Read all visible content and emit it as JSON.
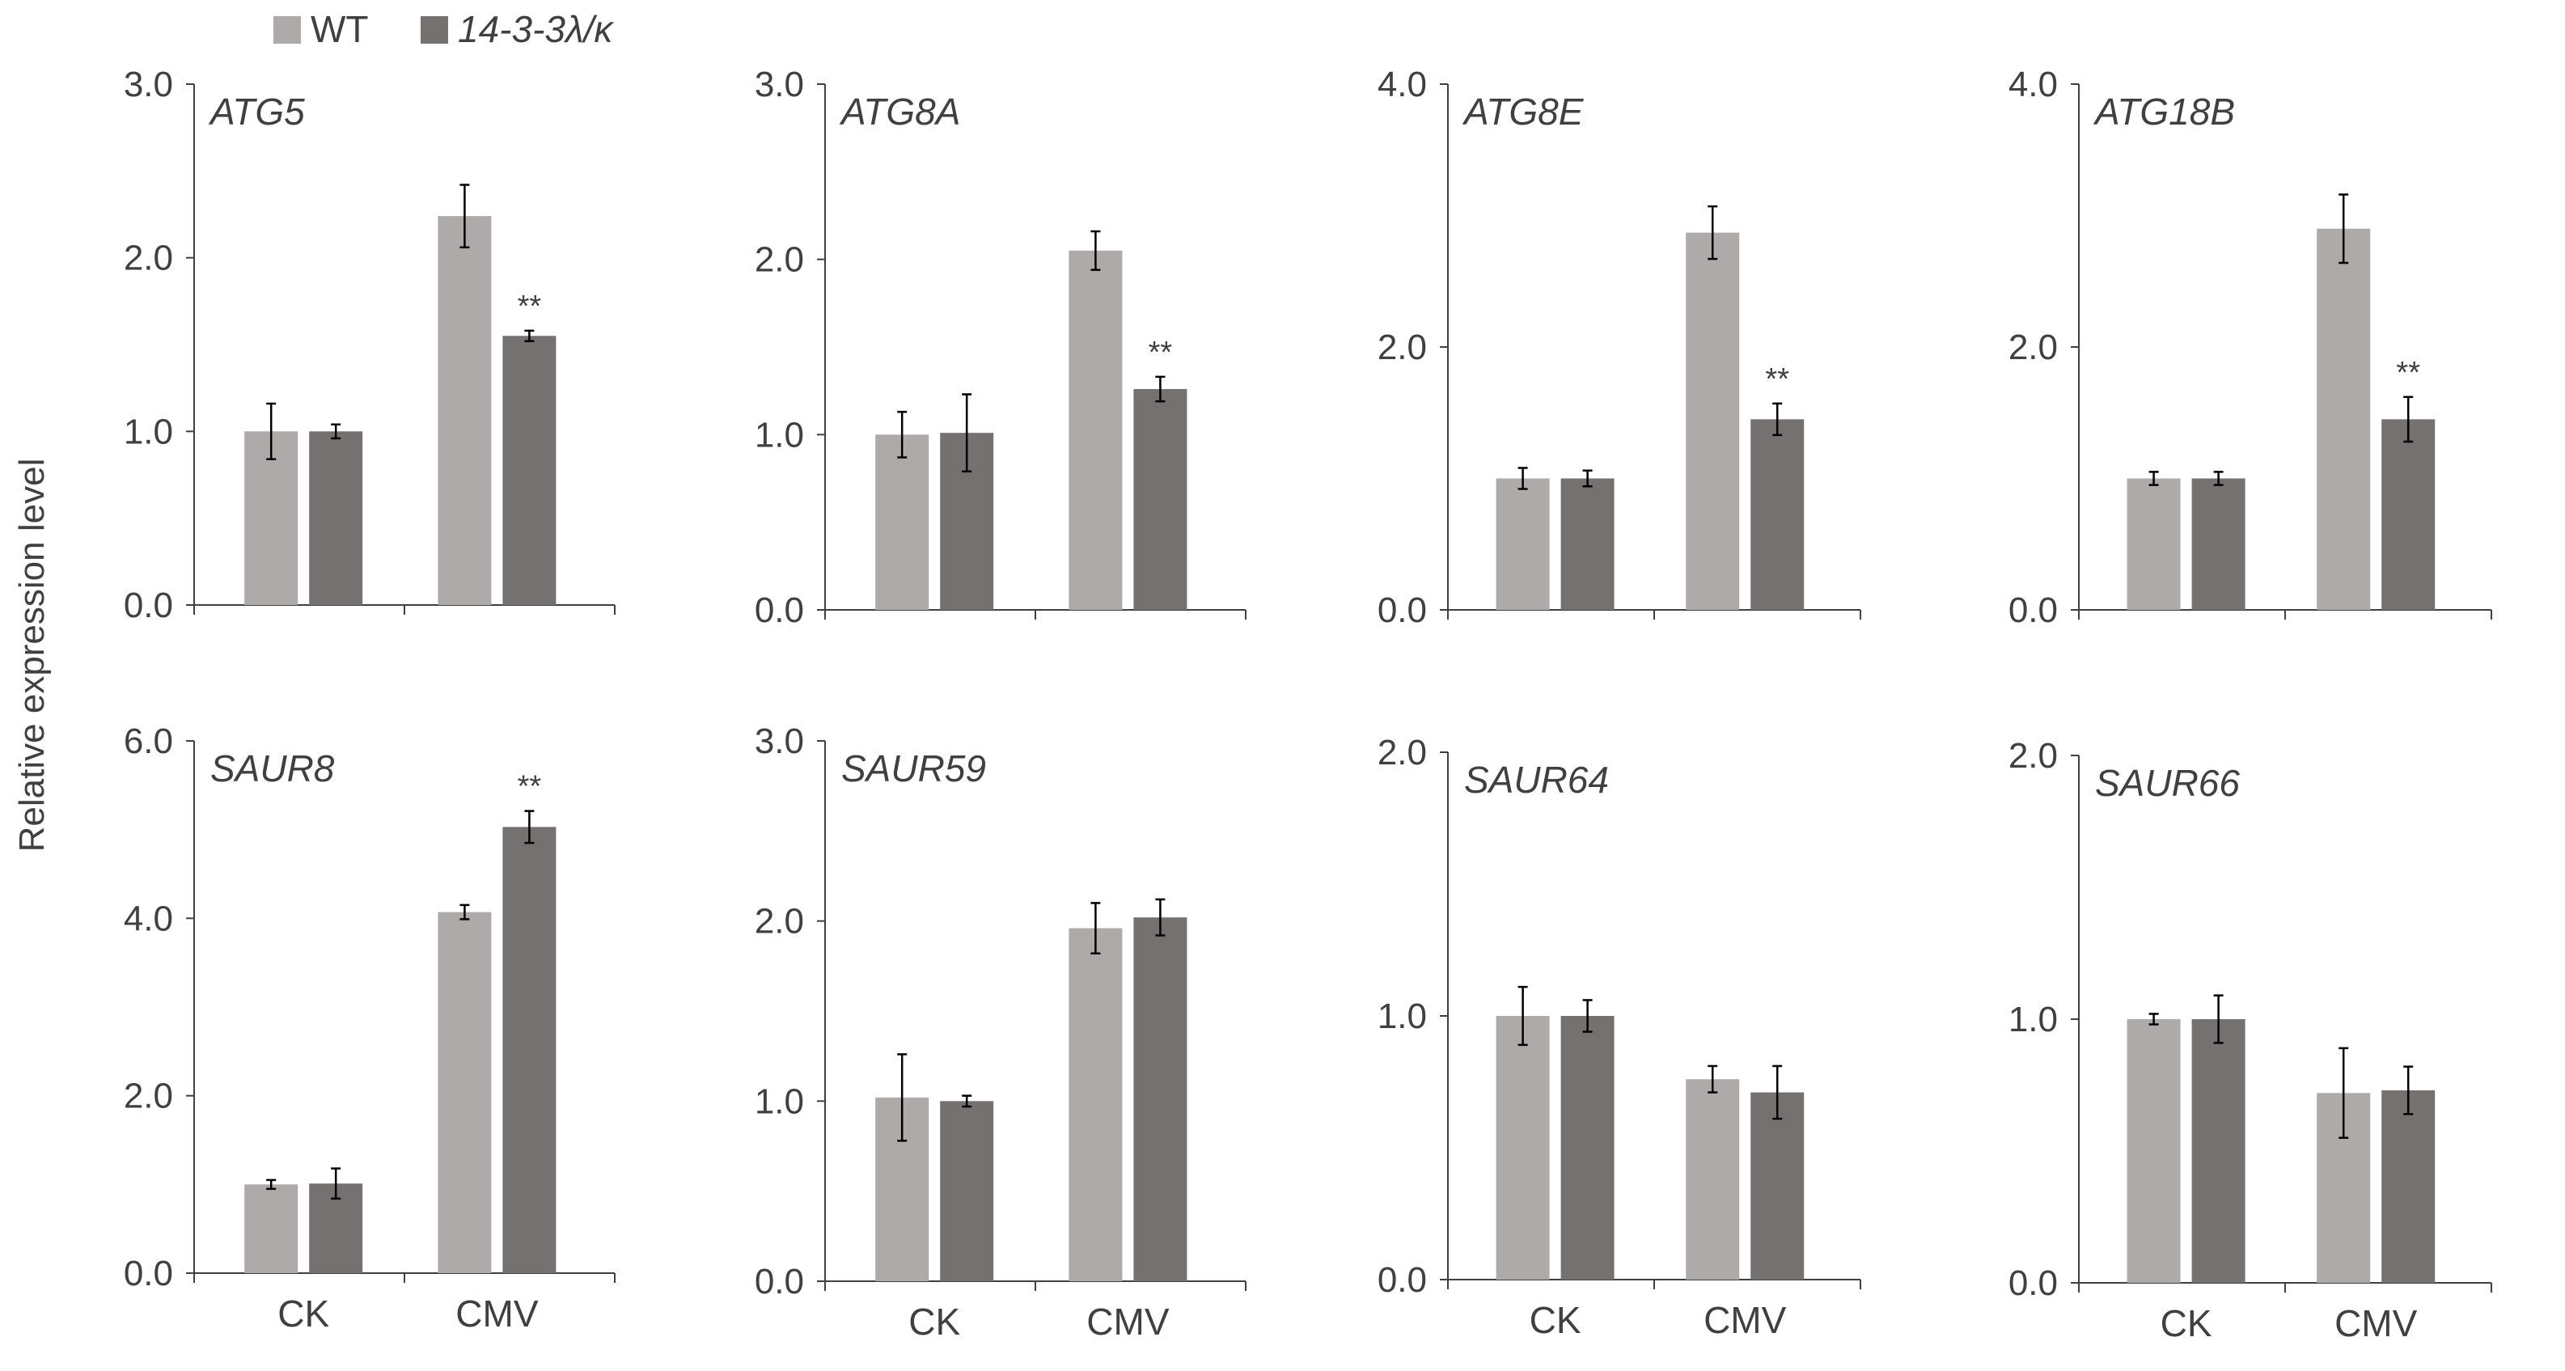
{
  "legend": {
    "series": [
      {
        "name": "WT",
        "color": "#aeaaaa"
      },
      {
        "name": "14-3-3λ/κ",
        "color": "#767171"
      }
    ]
  },
  "ylabel": "Relative expression level",
  "chart_data": [
    {
      "type": "bar",
      "title": "ATG5",
      "categories": [
        "CK",
        "CMV"
      ],
      "ylim": [
        0,
        3
      ],
      "yticks": [
        "0.0",
        "1.0",
        "2.0",
        "3.0"
      ],
      "show_xlabels": false,
      "series": [
        {
          "name": "WT",
          "values": [
            1.0,
            2.24
          ],
          "errors": [
            0.16,
            0.18
          ]
        },
        {
          "name": "14-3-3λ/κ",
          "values": [
            1.0,
            1.55
          ],
          "errors": [
            0.04,
            0.03
          ]
        }
      ],
      "annotations": [
        {
          "category": "CMV",
          "series": "14-3-3λ/κ",
          "text": "**"
        }
      ]
    },
    {
      "type": "bar",
      "title": "ATG8A",
      "categories": [
        "CK",
        "CMV"
      ],
      "ylim": [
        0,
        3
      ],
      "yticks": [
        "0.0",
        "1.0",
        "2.0",
        "3.0"
      ],
      "show_xlabels": false,
      "series": [
        {
          "name": "WT",
          "values": [
            1.0,
            2.05
          ],
          "errors": [
            0.13,
            0.11
          ]
        },
        {
          "name": "14-3-3λ/κ",
          "values": [
            1.01,
            1.26
          ],
          "errors": [
            0.22,
            0.07
          ]
        }
      ],
      "annotations": [
        {
          "category": "CMV",
          "series": "14-3-3λ/κ",
          "text": "**"
        }
      ]
    },
    {
      "type": "bar",
      "title": "ATG8E",
      "categories": [
        "CK",
        "CMV"
      ],
      "ylim": [
        0,
        4
      ],
      "yticks": [
        "0.0",
        "2.0",
        "4.0"
      ],
      "show_xlabels": false,
      "series": [
        {
          "name": "WT",
          "values": [
            1.0,
            2.87
          ],
          "errors": [
            0.08,
            0.2
          ]
        },
        {
          "name": "14-3-3λ/κ",
          "values": [
            1.0,
            1.45
          ],
          "errors": [
            0.06,
            0.12
          ]
        }
      ],
      "annotations": [
        {
          "category": "CMV",
          "series": "14-3-3λ/κ",
          "text": "**"
        }
      ]
    },
    {
      "type": "bar",
      "title": "ATG18B",
      "categories": [
        "CK",
        "CMV"
      ],
      "ylim": [
        0,
        4
      ],
      "yticks": [
        "0.0",
        "2.0",
        "4.0"
      ],
      "show_xlabels": false,
      "series": [
        {
          "name": "WT",
          "values": [
            1.0,
            2.9
          ],
          "errors": [
            0.05,
            0.26
          ]
        },
        {
          "name": "14-3-3λ/κ",
          "values": [
            1.0,
            1.45
          ],
          "errors": [
            0.05,
            0.17
          ]
        }
      ],
      "annotations": [
        {
          "category": "CMV",
          "series": "14-3-3λ/κ",
          "text": "**"
        }
      ]
    },
    {
      "type": "bar",
      "title": "SAUR8",
      "categories": [
        "CK",
        "CMV"
      ],
      "ylim": [
        0,
        6
      ],
      "yticks": [
        "0.0",
        "2.0",
        "4.0",
        "6.0"
      ],
      "show_xlabels": true,
      "series": [
        {
          "name": "WT",
          "values": [
            1.0,
            4.07
          ],
          "errors": [
            0.05,
            0.08
          ]
        },
        {
          "name": "14-3-3λ/κ",
          "values": [
            1.01,
            5.03
          ],
          "errors": [
            0.17,
            0.18
          ]
        }
      ],
      "annotations": [
        {
          "category": "CMV",
          "series": "14-3-3λ/κ",
          "text": "**"
        }
      ]
    },
    {
      "type": "bar",
      "title": "SAUR59",
      "categories": [
        "CK",
        "CMV"
      ],
      "ylim": [
        0,
        3
      ],
      "yticks": [
        "0.0",
        "1.0",
        "2.0",
        "3.0"
      ],
      "show_xlabels": true,
      "series": [
        {
          "name": "WT",
          "values": [
            1.02,
            1.96
          ],
          "errors": [
            0.24,
            0.14
          ]
        },
        {
          "name": "14-3-3λ/κ",
          "values": [
            1.0,
            2.02
          ],
          "errors": [
            0.03,
            0.1
          ]
        }
      ],
      "annotations": []
    },
    {
      "type": "bar",
      "title": "SAUR64",
      "categories": [
        "CK",
        "CMV"
      ],
      "ylim": [
        0,
        2
      ],
      "yticks": [
        "0.0",
        "1.0",
        "2.0"
      ],
      "show_xlabels": true,
      "series": [
        {
          "name": "WT",
          "values": [
            1.0,
            0.76
          ],
          "errors": [
            0.11,
            0.05
          ]
        },
        {
          "name": "14-3-3λ/κ",
          "values": [
            1.0,
            0.71
          ],
          "errors": [
            0.06,
            0.1
          ]
        }
      ],
      "annotations": []
    },
    {
      "type": "bar",
      "title": "SAUR66",
      "categories": [
        "CK",
        "CMV"
      ],
      "ylim": [
        0,
        2
      ],
      "yticks": [
        "0.0",
        "1.0",
        "2.0"
      ],
      "show_xlabels": true,
      "series": [
        {
          "name": "WT",
          "values": [
            1.0,
            0.72
          ],
          "errors": [
            0.02,
            0.17
          ]
        },
        {
          "name": "14-3-3λ/κ",
          "values": [
            1.0,
            0.73
          ],
          "errors": [
            0.09,
            0.09
          ]
        }
      ],
      "annotations": []
    }
  ]
}
